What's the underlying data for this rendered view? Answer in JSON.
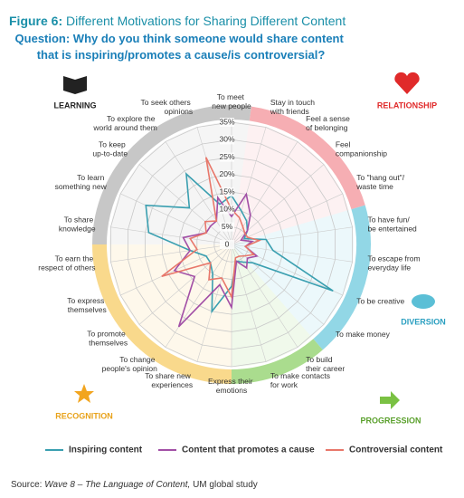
{
  "chart_data": {
    "type": "radar",
    "title_prefix": "Figure 6:",
    "title": "Different Motivations for Sharing Different Content",
    "subtitle": "Question: Why do you think someone would share content that is inspiring/promotes a cause/is controversial?",
    "categories": [
      "To meet new people",
      "Stay in touch with friends",
      "Feel a sense of belonging",
      "Feel companionship",
      "To \"hang out\"/ waste time",
      "To have fun/ be entertained",
      "To escape from everyday life",
      "To be creative",
      "To make money",
      "To build their career",
      "To make contacts for work",
      "Express their emotions",
      "To share new experiences",
      "To change people's opinion",
      "To promote themselves",
      "To express themselves",
      "To earn the respect of others",
      "To share knowledge",
      "To learn something new",
      "To keep up-to-date",
      "To explore the world around them",
      "To seek others opinions"
    ],
    "series": [
      {
        "name": "Inspiring content",
        "color": "#3a9fb0",
        "values": [
          14,
          10,
          8,
          6,
          4,
          10,
          12,
          32,
          8,
          6,
          5,
          12,
          20,
          10,
          8,
          8,
          12,
          24,
          27,
          16,
          24,
          12
        ]
      },
      {
        "name": "Content that promotes a cause",
        "color": "#a24fa6",
        "values": [
          8,
          15,
          10,
          6,
          3,
          6,
          4,
          8,
          6,
          8,
          5,
          18,
          12,
          28,
          14,
          18,
          12,
          14,
          8,
          8,
          8,
          14
        ]
      },
      {
        "name": "Controversial content",
        "color": "#e8776a",
        "values": [
          10,
          8,
          6,
          5,
          5,
          8,
          4,
          7,
          5,
          4,
          4,
          15,
          10,
          12,
          8,
          22,
          10,
          12,
          8,
          10,
          8,
          26
        ]
      }
    ],
    "ylim": [
      0,
      35
    ],
    "yticks": [
      0,
      {
        "value": 5,
        "label": "5%"
      },
      {
        "value": 10,
        "label": "10%"
      },
      {
        "value": 15,
        "label": "15%"
      },
      {
        "value": 20,
        "label": "20%"
      },
      {
        "value": 25,
        "label": "25%"
      },
      {
        "value": 30,
        "label": "30%"
      },
      {
        "value": 35,
        "label": "35%"
      }
    ],
    "grid": true,
    "groups": [
      "LEARNING",
      "RELATIONSHIP",
      "DIVERSION",
      "PROGRESSION",
      "RECOGNITION"
    ],
    "source": [
      "Source:",
      "Wave 8 – The Language of Content,",
      "UM global study"
    ]
  }
}
